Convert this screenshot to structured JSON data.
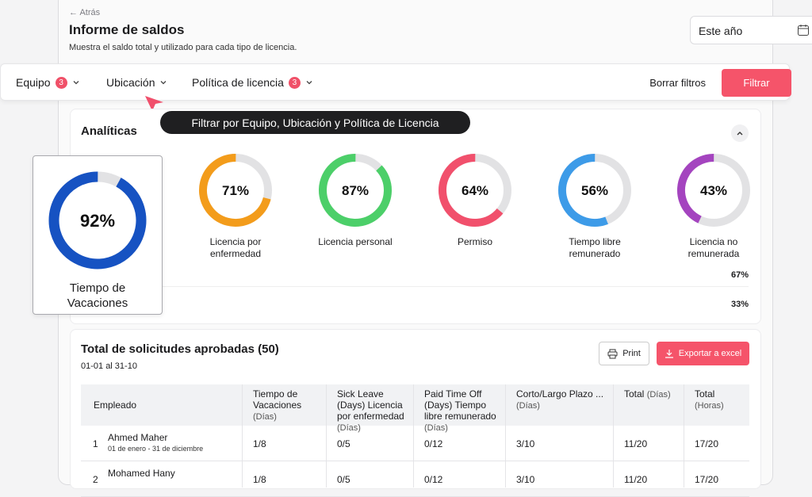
{
  "header": {
    "back": "← Atrás",
    "title": "Informe de saldos",
    "subtitle": "Muestra el saldo total y utilizado para cada tipo de licencia.",
    "date_filter": "Este año"
  },
  "filters": {
    "items": [
      {
        "label": "Equipo",
        "badge": "3"
      },
      {
        "label": "Ubicación"
      },
      {
        "label": "Política de licencia",
        "badge": "3"
      }
    ],
    "clear": "Borrar filtros",
    "apply": "Filtrar"
  },
  "tooltip": "Filtrar por Equipo, Ubicación y Política de Licencia",
  "analytics": {
    "title": "Analíticas",
    "donuts": [
      {
        "label": "Tiempo de Vacaciones",
        "value": 92,
        "value_label": "92%",
        "color": "#1652c2"
      },
      {
        "label": "Licencia por enfermedad",
        "value": 71,
        "value_label": "71%",
        "color": "#f39c1b"
      },
      {
        "label": "Licencia personal",
        "value": 87,
        "value_label": "87%",
        "color": "#4ccf69"
      },
      {
        "label": "Permiso",
        "value": 64,
        "value_label": "64%",
        "color": "#f1506c"
      },
      {
        "label": "Tiempo libre remunerado",
        "value": 56,
        "value_label": "56%",
        "color": "#3d9be8"
      },
      {
        "label": "Licencia no remunerada",
        "value": 43,
        "value_label": "43%",
        "color": "#a444bf"
      }
    ],
    "extra": [
      "67%",
      "33%"
    ]
  },
  "requests": {
    "title": "Total de solicitudes aprobadas (50)",
    "range": "01-01 al 31-10",
    "print": "Print",
    "export": "Exportar a excel",
    "columns": [
      {
        "title": "Empleado"
      },
      {
        "title": "Tiempo de Vacaciones",
        "subtitle": "(Días)"
      },
      {
        "title": "Sick Leave (Days) Licencia por enfermedad",
        "subtitle": "(Días)"
      },
      {
        "title": "Paid Time Off (Days) Tiempo libre remunerado",
        "subtitle": "(Días)"
      },
      {
        "title": "Corto/Largo Plazo ...",
        "subtitle": "(Días)"
      },
      {
        "title": "Total",
        "subtitle": "(Días)"
      },
      {
        "title": "Total",
        "subtitle": "(Horas)"
      }
    ],
    "rows": [
      {
        "index": "1",
        "name": "Ahmed Maher",
        "dates": "01 de enero - 31 de diciembre",
        "cells": [
          "1/8",
          "0/5",
          "0/12",
          "3/10",
          "11/20",
          "17/20"
        ]
      },
      {
        "index": "2",
        "name": "Mohamed Hany",
        "cells": [
          "1/8",
          "0/5",
          "0/12",
          "3/10",
          "11/20",
          "17/20"
        ]
      }
    ]
  }
}
